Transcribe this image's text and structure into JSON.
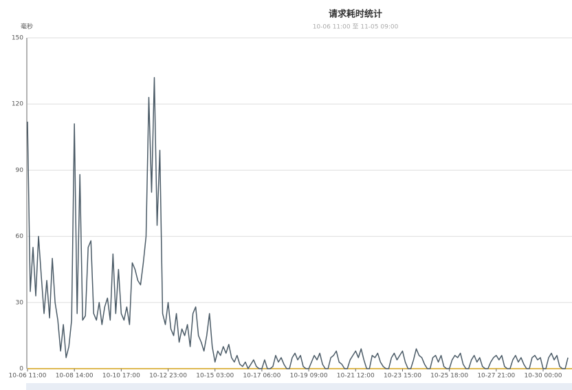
{
  "chart_data": {
    "type": "line",
    "title": "请求耗时统计",
    "subtitle": "10-06 11:00 至 11-05 09:00",
    "y_label": "毫秒",
    "categories": [
      "10-06 11:00",
      null,
      null,
      null,
      null,
      null,
      null,
      null,
      null,
      null,
      null,
      null,
      null,
      null,
      null,
      null,
      null,
      "10-08 14:00",
      null,
      null,
      null,
      null,
      null,
      null,
      null,
      null,
      null,
      null,
      null,
      null,
      null,
      null,
      null,
      null,
      "10-10 17:00",
      null,
      null,
      null,
      null,
      null,
      null,
      null,
      null,
      null,
      null,
      null,
      null,
      null,
      null,
      null,
      null,
      "10-12 23:00",
      null,
      null,
      null,
      null,
      null,
      null,
      null,
      null,
      null,
      null,
      null,
      null,
      null,
      null,
      null,
      null,
      "10-15 03:00",
      null,
      null,
      null,
      null,
      null,
      null,
      null,
      null,
      null,
      null,
      null,
      null,
      null,
      null,
      null,
      null,
      "10-17 06:00",
      null,
      null,
      null,
      null,
      null,
      null,
      null,
      null,
      null,
      null,
      null,
      null,
      null,
      null,
      null,
      null,
      "10-19 09:00",
      null,
      null,
      null,
      null,
      null,
      null,
      null,
      null,
      null,
      null,
      null,
      null,
      null,
      null,
      null,
      null,
      "10-21 12:00",
      null,
      null,
      null,
      null,
      null,
      null,
      null,
      null,
      null,
      null,
      null,
      null,
      null,
      null,
      null,
      null,
      "10-23 15:00",
      null,
      null,
      null,
      null,
      null,
      null,
      null,
      null,
      null,
      null,
      null,
      null,
      null,
      null,
      null,
      null,
      "10-25 18:00",
      null,
      null,
      null,
      null,
      null,
      null,
      null,
      null,
      null,
      null,
      null,
      null,
      null,
      null,
      null,
      null,
      "10-27 21:00",
      null,
      null,
      null,
      null,
      null,
      null,
      null,
      null,
      null,
      null,
      null,
      null,
      null,
      null,
      null,
      null,
      "10-30 00:00",
      null,
      null,
      null,
      null,
      null,
      null,
      null,
      null,
      null
    ],
    "values": [
      112,
      35,
      55,
      33,
      60,
      42,
      25,
      40,
      23,
      50,
      30,
      22,
      8,
      20,
      5,
      10,
      22,
      111,
      25,
      88,
      22,
      24,
      55,
      58,
      25,
      22,
      30,
      20,
      28,
      32,
      22,
      52,
      25,
      45,
      25,
      22,
      28,
      20,
      48,
      45,
      40,
      38,
      48,
      60,
      123,
      80,
      132,
      65,
      99,
      25,
      20,
      30,
      18,
      15,
      25,
      12,
      18,
      15,
      20,
      10,
      25,
      28,
      15,
      12,
      8,
      15,
      25,
      10,
      3,
      8,
      6,
      10,
      7,
      11,
      5,
      3,
      6,
      2,
      1,
      3,
      0,
      2,
      4,
      1,
      0,
      0,
      4,
      0,
      0,
      1,
      6,
      3,
      5,
      2,
      0,
      0,
      5,
      7,
      4,
      6,
      1,
      0,
      0,
      3,
      6,
      4,
      7,
      2,
      0,
      0,
      5,
      6,
      8,
      3,
      2,
      0,
      0,
      4,
      6,
      8,
      5,
      9,
      4,
      0,
      0,
      6,
      5,
      7,
      3,
      1,
      0,
      0,
      5,
      7,
      4,
      6,
      8,
      3,
      0,
      0,
      4,
      9,
      6,
      5,
      2,
      0,
      0,
      5,
      6,
      3,
      6,
      1,
      0,
      0,
      4,
      6,
      5,
      7,
      2,
      0,
      0,
      4,
      6,
      3,
      5,
      1,
      0,
      0,
      3,
      5,
      6,
      4,
      6,
      1,
      0,
      0,
      4,
      6,
      3,
      5,
      2,
      0,
      0,
      5,
      6,
      4,
      5,
      0,
      0,
      5,
      7,
      4,
      6,
      1,
      0,
      0,
      5
    ],
    "color": "#4a5a66",
    "ylim": [
      0,
      150
    ],
    "yticks": [
      0,
      30,
      60,
      90,
      120,
      150
    ],
    "grid": true
  }
}
